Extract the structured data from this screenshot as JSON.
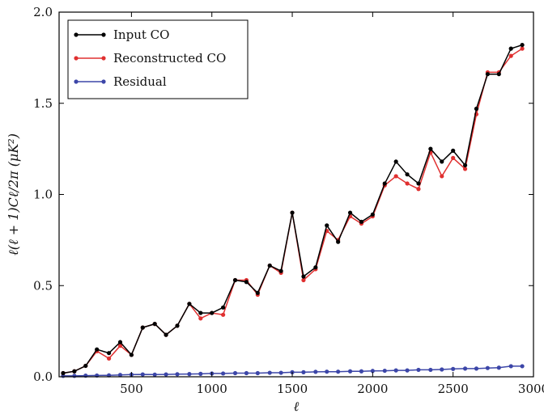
{
  "chart_data": {
    "type": "line",
    "xlabel": "ℓ",
    "ylabel": "ℓ(ℓ + 1)Cℓ/2π (μK²)",
    "xlim": [
      50,
      3000
    ],
    "ylim": [
      0,
      2.0
    ],
    "xticks": [
      500,
      1000,
      1500,
      2000,
      2500,
      3000
    ],
    "xtick_labels": [
      "500",
      "1000",
      "1500",
      "2000",
      "2500",
      "3000"
    ],
    "yticks": [
      0,
      0.5,
      1.0,
      1.5,
      2.0
    ],
    "ytick_labels": [
      "0.0",
      "0.5",
      "1.0",
      "1.5",
      "2.0"
    ],
    "grid": false,
    "legend_position": "top-left",
    "x": [
      75,
      145,
      215,
      285,
      360,
      430,
      500,
      570,
      645,
      715,
      785,
      860,
      930,
      1000,
      1070,
      1145,
      1215,
      1285,
      1360,
      1430,
      1500,
      1570,
      1645,
      1715,
      1785,
      1860,
      1930,
      2000,
      2075,
      2145,
      2215,
      2285,
      2360,
      2430,
      2500,
      2575,
      2645,
      2715,
      2785,
      2860,
      2930
    ],
    "series": [
      {
        "name": "Input CO",
        "color": "#000000",
        "values": [
          0.02,
          0.03,
          0.06,
          0.15,
          0.13,
          0.19,
          0.12,
          0.27,
          0.29,
          0.23,
          0.28,
          0.4,
          0.35,
          0.35,
          0.38,
          0.53,
          0.52,
          0.46,
          0.61,
          0.58,
          0.9,
          0.55,
          0.6,
          0.83,
          0.74,
          0.9,
          0.85,
          0.89,
          1.06,
          1.18,
          1.11,
          1.06,
          1.25,
          1.18,
          1.24,
          1.16,
          1.47,
          1.66,
          1.66,
          1.8,
          1.82
        ]
      },
      {
        "name": "Reconstructed CO",
        "color": "#e03030",
        "values": [
          0.02,
          0.03,
          0.06,
          0.14,
          0.1,
          0.17,
          0.12,
          0.27,
          0.29,
          0.23,
          0.28,
          0.4,
          0.32,
          0.35,
          0.34,
          0.53,
          0.53,
          0.45,
          0.61,
          0.57,
          0.9,
          0.53,
          0.59,
          0.8,
          0.75,
          0.88,
          0.84,
          0.88,
          1.05,
          1.1,
          1.06,
          1.03,
          1.23,
          1.1,
          1.2,
          1.14,
          1.44,
          1.67,
          1.67,
          1.76,
          1.8
        ]
      },
      {
        "name": "Residual",
        "color": "#3c46a8",
        "values": [
          0.005,
          0.005,
          0.006,
          0.007,
          0.008,
          0.01,
          0.012,
          0.013,
          0.012,
          0.013,
          0.014,
          0.015,
          0.016,
          0.018,
          0.018,
          0.02,
          0.02,
          0.02,
          0.022,
          0.022,
          0.025,
          0.025,
          0.027,
          0.028,
          0.028,
          0.03,
          0.03,
          0.032,
          0.033,
          0.035,
          0.035,
          0.038,
          0.038,
          0.04,
          0.043,
          0.045,
          0.045,
          0.048,
          0.05,
          0.058,
          0.058
        ]
      }
    ]
  }
}
